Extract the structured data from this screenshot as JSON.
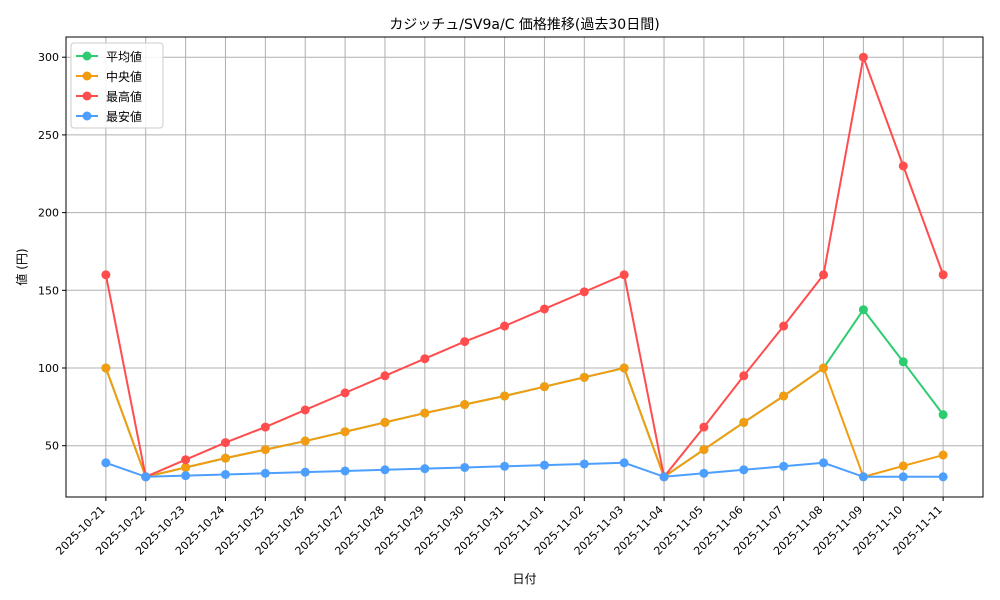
{
  "chart_data": {
    "type": "line",
    "title": "カジッチュ/SV9a/C 価格推移(過去30日間)",
    "xlabel": "日付",
    "ylabel": "値 (円)",
    "ylim": [
      17,
      313
    ],
    "yticks": [
      50,
      100,
      150,
      200,
      250,
      300
    ],
    "grid": true,
    "legend": "top-left",
    "categories": [
      "2025-10-21",
      "2025-10-22",
      "2025-10-23",
      "2025-10-24",
      "2025-10-25",
      "2025-10-26",
      "2025-10-27",
      "2025-10-28",
      "2025-10-29",
      "2025-10-30",
      "2025-10-31",
      "2025-11-01",
      "2025-11-02",
      "2025-11-03",
      "2025-11-04",
      "2025-11-05",
      "2025-11-06",
      "2025-11-07",
      "2025-11-08",
      "2025-11-09",
      "2025-11-10",
      "2025-11-11"
    ],
    "series": [
      {
        "name": "平均値",
        "color": "#2ecc71",
        "values": [
          100,
          30,
          36,
          42,
          47.5,
          53,
          59,
          65,
          71,
          76.5,
          82,
          88,
          94,
          100,
          30,
          47.5,
          65,
          82,
          100,
          137.5,
          104,
          70
        ]
      },
      {
        "name": "中央値",
        "color": "#f39c12",
        "values": [
          100,
          30,
          36,
          42,
          47.5,
          53,
          59,
          65,
          71,
          76.5,
          82,
          88,
          94,
          100,
          30,
          47.5,
          65,
          82,
          100,
          30,
          37,
          44
        ]
      },
      {
        "name": "最高値",
        "color": "#ff4d4d",
        "values": [
          160,
          30,
          41,
          52,
          62,
          73,
          84,
          95,
          106,
          117,
          127,
          138,
          149,
          160,
          30,
          62,
          95,
          127,
          160,
          300,
          230,
          160
        ]
      },
      {
        "name": "最安値",
        "color": "#4d9fff",
        "values": [
          39,
          30,
          30.75,
          31.5,
          32.25,
          33,
          33.75,
          34.5,
          35.25,
          36,
          36.75,
          37.5,
          38.25,
          39,
          30,
          32.25,
          34.5,
          36.75,
          39,
          30,
          30,
          30
        ]
      }
    ]
  }
}
